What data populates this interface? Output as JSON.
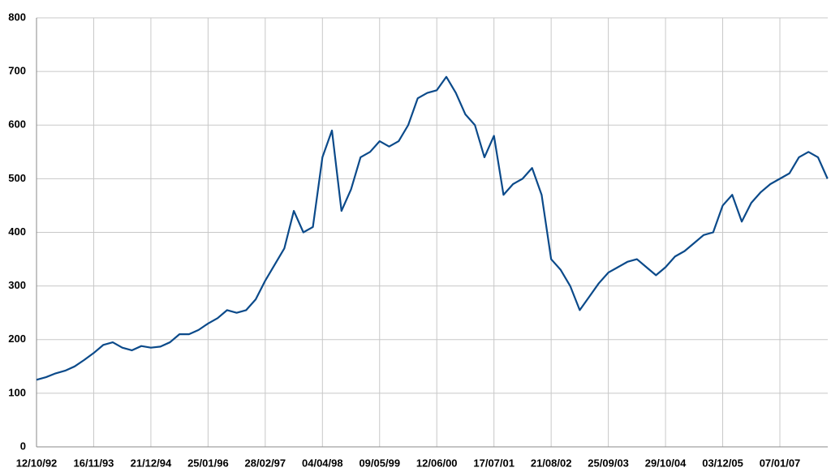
{
  "chart_data": {
    "type": "line",
    "categories": [
      "12/10/92",
      null,
      null,
      null,
      null,
      null,
      "16/11/93",
      null,
      null,
      null,
      null,
      null,
      "21/12/94",
      null,
      null,
      null,
      null,
      null,
      "25/01/96",
      null,
      null,
      null,
      null,
      null,
      "28/02/97",
      null,
      null,
      null,
      null,
      null,
      "04/04/98",
      null,
      null,
      null,
      null,
      null,
      "09/05/99",
      null,
      null,
      null,
      null,
      null,
      "12/06/00",
      null,
      null,
      null,
      null,
      null,
      "17/07/01",
      null,
      null,
      null,
      null,
      null,
      "21/08/02",
      null,
      null,
      null,
      null,
      null,
      "25/09/03",
      null,
      null,
      null,
      null,
      null,
      "29/10/04",
      null,
      null,
      null,
      null,
      null,
      "03/12/05",
      null,
      null,
      null,
      null,
      null,
      "07/01/07",
      null,
      null,
      null,
      null,
      null
    ],
    "values": [
      125,
      130,
      137,
      142,
      150,
      162,
      175,
      190,
      195,
      185,
      180,
      188,
      185,
      187,
      195,
      210,
      210,
      218,
      230,
      240,
      255,
      250,
      255,
      275,
      310,
      340,
      370,
      440,
      400,
      410,
      540,
      590,
      440,
      480,
      540,
      550,
      570,
      560,
      570,
      600,
      650,
      660,
      665,
      690,
      660,
      620,
      600,
      540,
      580,
      470,
      490,
      500,
      520,
      470,
      350,
      330,
      300,
      255,
      280,
      305,
      325,
      335,
      345,
      350,
      335,
      320,
      335,
      355,
      365,
      380,
      395,
      400,
      450,
      470,
      420,
      455,
      475,
      490,
      500,
      510,
      540,
      550,
      540,
      500
    ],
    "color": "#0b4a8a",
    "ylim": [
      0,
      800
    ],
    "yticks": [
      0,
      100,
      200,
      300,
      400,
      500,
      600,
      700,
      800
    ],
    "grid": true
  }
}
